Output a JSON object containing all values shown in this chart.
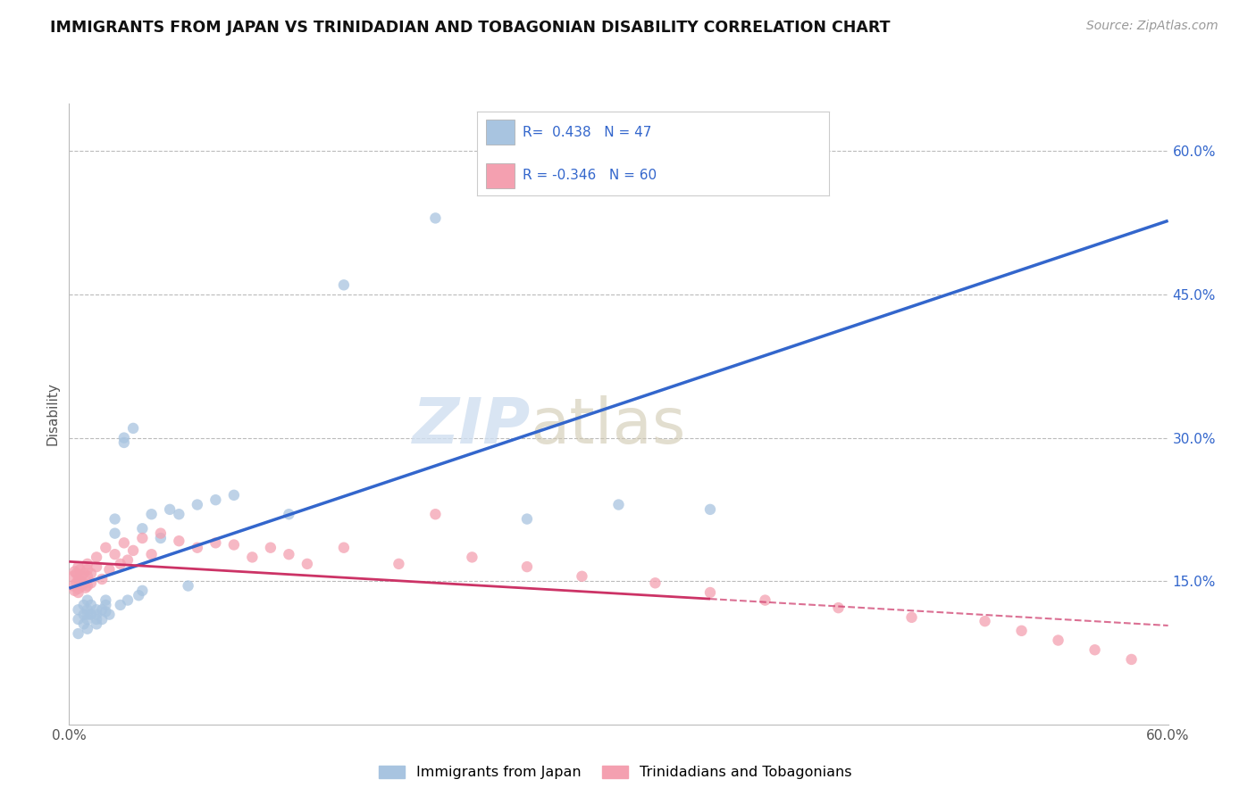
{
  "title": "IMMIGRANTS FROM JAPAN VS TRINIDADIAN AND TOBAGONIAN DISABILITY CORRELATION CHART",
  "source": "Source: ZipAtlas.com",
  "ylabel": "Disability",
  "legend_label1": "Immigrants from Japan",
  "legend_label2": "Trinidadians and Tobagonians",
  "r1": 0.438,
  "n1": 47,
  "r2": -0.346,
  "n2": 60,
  "xmin": 0.0,
  "xmax": 0.6,
  "ymin": 0.0,
  "ymax": 0.65,
  "scatter_color1": "#a8c4e0",
  "scatter_color2": "#f4a0b0",
  "line_color1": "#3366cc",
  "line_color2": "#cc3366",
  "watermark_zip": "ZIP",
  "watermark_atlas": "atlas",
  "japan_x": [
    0.005,
    0.005,
    0.005,
    0.008,
    0.008,
    0.008,
    0.01,
    0.01,
    0.01,
    0.01,
    0.01,
    0.012,
    0.012,
    0.015,
    0.015,
    0.015,
    0.015,
    0.018,
    0.018,
    0.02,
    0.02,
    0.02,
    0.022,
    0.025,
    0.025,
    0.028,
    0.03,
    0.03,
    0.032,
    0.035,
    0.038,
    0.04,
    0.04,
    0.045,
    0.05,
    0.055,
    0.06,
    0.065,
    0.07,
    0.08,
    0.09,
    0.12,
    0.15,
    0.2,
    0.25,
    0.3,
    0.35
  ],
  "japan_y": [
    0.095,
    0.11,
    0.12,
    0.105,
    0.115,
    0.125,
    0.1,
    0.11,
    0.115,
    0.13,
    0.12,
    0.115,
    0.125,
    0.11,
    0.12,
    0.105,
    0.115,
    0.12,
    0.11,
    0.125,
    0.118,
    0.13,
    0.115,
    0.2,
    0.215,
    0.125,
    0.3,
    0.295,
    0.13,
    0.31,
    0.135,
    0.205,
    0.14,
    0.22,
    0.195,
    0.225,
    0.22,
    0.145,
    0.23,
    0.235,
    0.24,
    0.22,
    0.46,
    0.53,
    0.215,
    0.23,
    0.225
  ],
  "trini_x": [
    0.002,
    0.002,
    0.003,
    0.003,
    0.004,
    0.004,
    0.005,
    0.005,
    0.005,
    0.005,
    0.006,
    0.006,
    0.007,
    0.007,
    0.008,
    0.008,
    0.009,
    0.01,
    0.01,
    0.01,
    0.01,
    0.012,
    0.012,
    0.015,
    0.015,
    0.018,
    0.02,
    0.022,
    0.025,
    0.028,
    0.03,
    0.032,
    0.035,
    0.04,
    0.045,
    0.05,
    0.06,
    0.07,
    0.08,
    0.09,
    0.1,
    0.11,
    0.12,
    0.13,
    0.15,
    0.18,
    0.2,
    0.22,
    0.25,
    0.28,
    0.32,
    0.35,
    0.38,
    0.42,
    0.46,
    0.5,
    0.52,
    0.54,
    0.56,
    0.58
  ],
  "trini_y": [
    0.145,
    0.155,
    0.14,
    0.16,
    0.148,
    0.158,
    0.142,
    0.152,
    0.165,
    0.138,
    0.15,
    0.162,
    0.145,
    0.155,
    0.148,
    0.158,
    0.143,
    0.162,
    0.145,
    0.155,
    0.168,
    0.148,
    0.158,
    0.165,
    0.175,
    0.152,
    0.185,
    0.162,
    0.178,
    0.168,
    0.19,
    0.172,
    0.182,
    0.195,
    0.178,
    0.2,
    0.192,
    0.185,
    0.19,
    0.188,
    0.175,
    0.185,
    0.178,
    0.168,
    0.185,
    0.168,
    0.22,
    0.175,
    0.165,
    0.155,
    0.148,
    0.138,
    0.13,
    0.122,
    0.112,
    0.108,
    0.098,
    0.088,
    0.078,
    0.068
  ],
  "ytick_values": [
    0.15,
    0.3,
    0.45,
    0.6
  ]
}
